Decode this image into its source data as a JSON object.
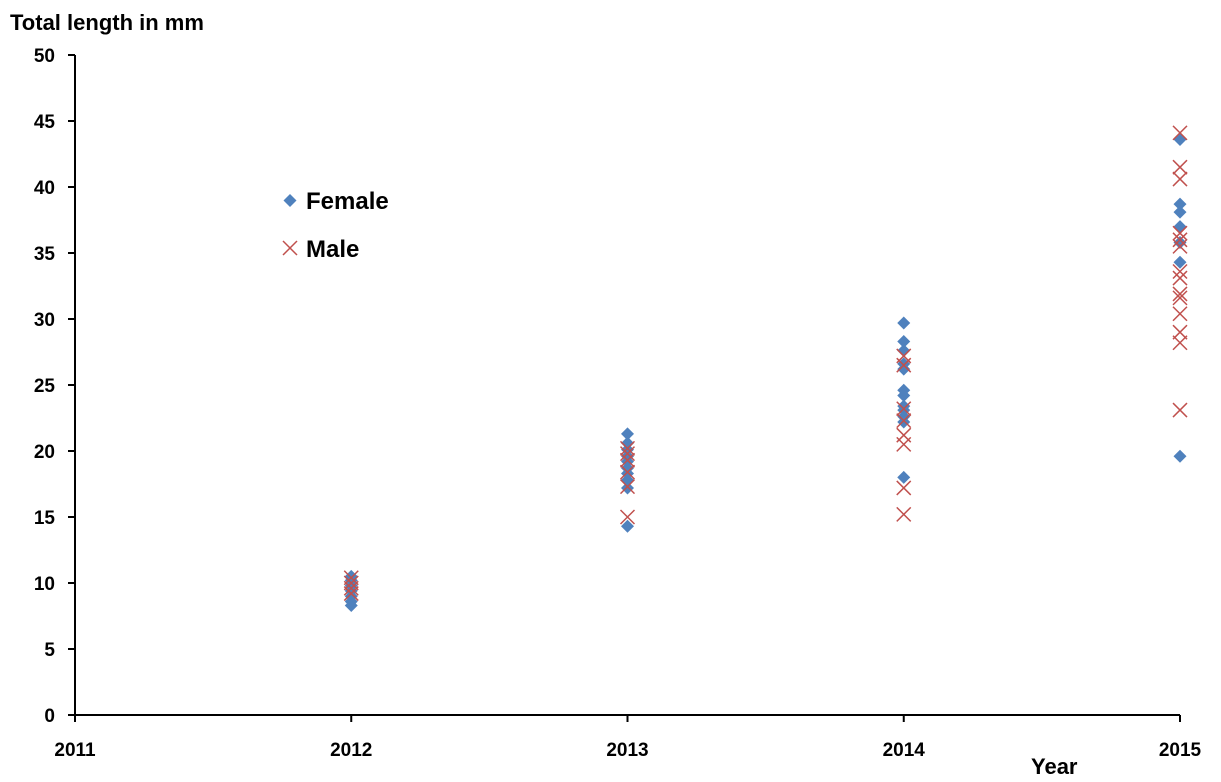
{
  "chart_data": {
    "type": "scatter",
    "title": "",
    "ylabel": "Total length in mm",
    "xlabel": "Year",
    "xlim": [
      2011,
      2015
    ],
    "ylim": [
      0,
      50
    ],
    "xticks": [
      "2011",
      "2012",
      "2013",
      "2014",
      "2015"
    ],
    "yticks": [
      "0",
      "5",
      "10",
      "15",
      "20",
      "25",
      "30",
      "35",
      "40",
      "45",
      "50"
    ],
    "grid": false,
    "legend_position": "upper-left",
    "series": [
      {
        "name": "Female",
        "marker": "diamond",
        "color": "#4F81BD",
        "points": [
          [
            2012,
            8.3
          ],
          [
            2012,
            8.6
          ],
          [
            2012,
            9.0
          ],
          [
            2012,
            9.4
          ],
          [
            2012,
            9.8
          ],
          [
            2012,
            10.2
          ],
          [
            2012,
            10.5
          ],
          [
            2013,
            14.3
          ],
          [
            2013,
            17.2
          ],
          [
            2013,
            17.8
          ],
          [
            2013,
            18.3
          ],
          [
            2013,
            18.7
          ],
          [
            2013,
            19.2
          ],
          [
            2013,
            19.6
          ],
          [
            2013,
            20.1
          ],
          [
            2013,
            20.6
          ],
          [
            2013,
            21.3
          ],
          [
            2014,
            18.0
          ],
          [
            2014,
            22.2
          ],
          [
            2014,
            22.6
          ],
          [
            2014,
            23.1
          ],
          [
            2014,
            23.4
          ],
          [
            2014,
            24.2
          ],
          [
            2014,
            24.6
          ],
          [
            2014,
            26.2
          ],
          [
            2014,
            26.6
          ],
          [
            2014,
            27.6
          ],
          [
            2014,
            28.3
          ],
          [
            2014,
            29.7
          ],
          [
            2015,
            19.6
          ],
          [
            2015,
            34.3
          ],
          [
            2015,
            35.8
          ],
          [
            2015,
            37.0
          ],
          [
            2015,
            38.1
          ],
          [
            2015,
            38.7
          ],
          [
            2015,
            43.6
          ]
        ]
      },
      {
        "name": "Male",
        "marker": "x",
        "color": "#C0504D",
        "points": [
          [
            2012,
            9.2
          ],
          [
            2012,
            9.6
          ],
          [
            2012,
            10.0
          ],
          [
            2012,
            10.4
          ],
          [
            2013,
            15.0
          ],
          [
            2013,
            17.3
          ],
          [
            2013,
            18.4
          ],
          [
            2013,
            19.3
          ],
          [
            2013,
            19.8
          ],
          [
            2013,
            20.2
          ],
          [
            2014,
            15.2
          ],
          [
            2014,
            17.2
          ],
          [
            2014,
            20.5
          ],
          [
            2014,
            21.2
          ],
          [
            2014,
            22.3
          ],
          [
            2014,
            23.2
          ],
          [
            2014,
            26.5
          ],
          [
            2014,
            27.2
          ],
          [
            2015,
            23.1
          ],
          [
            2015,
            28.2
          ],
          [
            2015,
            29.0
          ],
          [
            2015,
            30.4
          ],
          [
            2015,
            31.6
          ],
          [
            2015,
            31.9
          ],
          [
            2015,
            33.1
          ],
          [
            2015,
            33.6
          ],
          [
            2015,
            35.5
          ],
          [
            2015,
            36.0
          ],
          [
            2015,
            36.5
          ],
          [
            2015,
            40.6
          ],
          [
            2015,
            41.5
          ],
          [
            2015,
            44.1
          ]
        ]
      }
    ]
  }
}
